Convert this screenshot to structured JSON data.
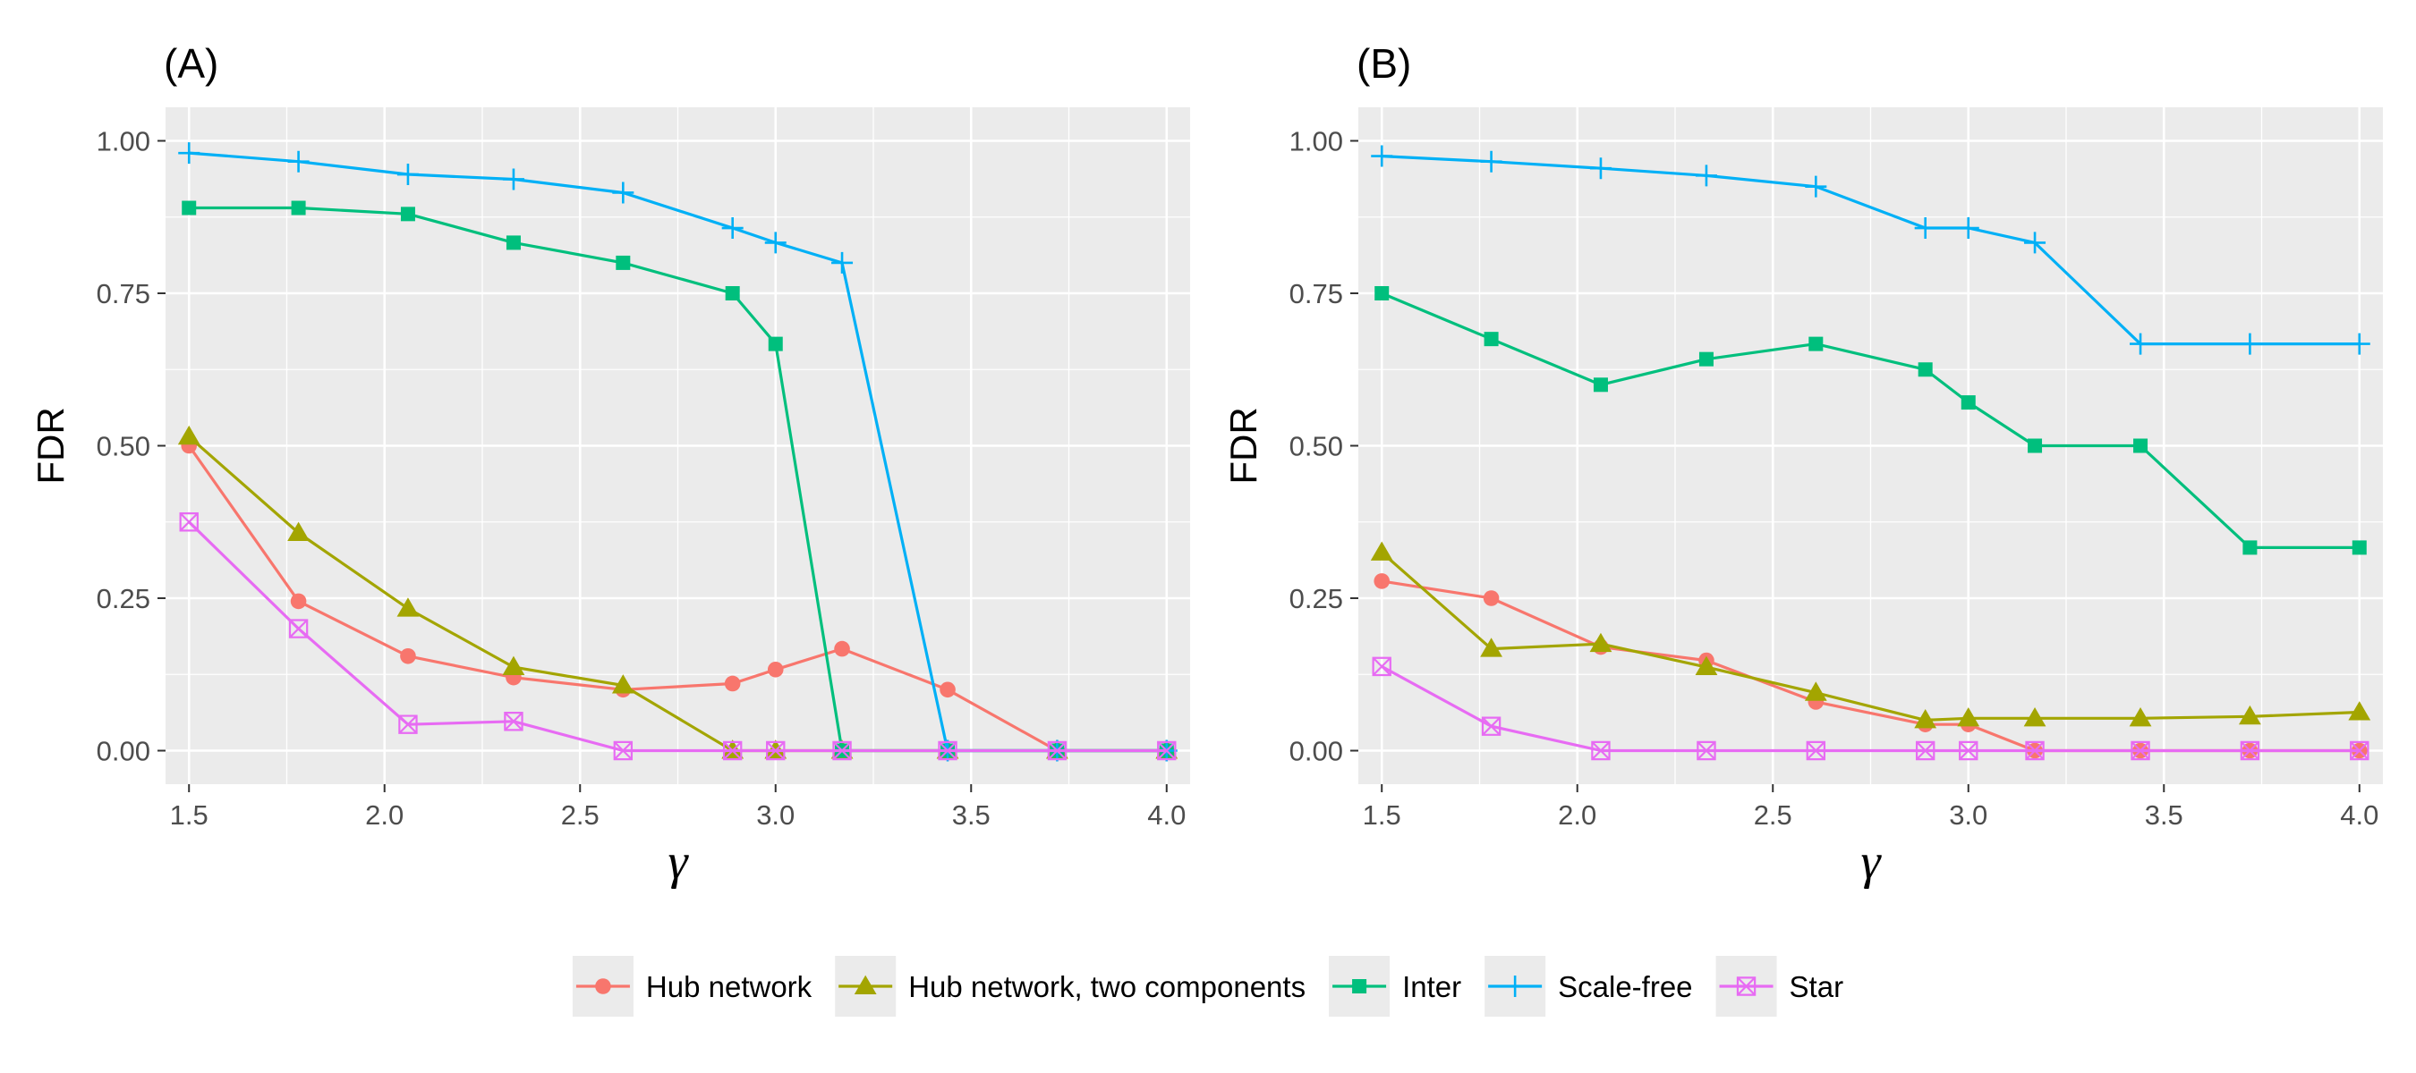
{
  "chart_data": [
    {
      "type": "line",
      "title": "(A)",
      "xlabel": "γ",
      "ylabel": "FDR",
      "xlim": [
        1.44,
        4.06
      ],
      "ylim": [
        -0.055,
        1.055
      ],
      "xticks": [
        "1.5",
        "2.0",
        "2.5",
        "3.0",
        "3.5",
        "4.0"
      ],
      "yticks": [
        "0.00",
        "0.25",
        "0.50",
        "0.75",
        "1.00"
      ],
      "grid": true,
      "series": [
        {
          "name": "Hub network",
          "color": "#F8766D",
          "marker": "circle",
          "x": [
            1.5,
            1.78,
            2.06,
            2.33,
            2.61,
            2.89,
            3.0,
            3.17,
            3.44,
            3.72,
            4.0
          ],
          "y": [
            0.5,
            0.245,
            0.155,
            0.12,
            0.1,
            0.11,
            0.133,
            0.167,
            0.1,
            0.0,
            0.0
          ]
        },
        {
          "name": "Hub network, two components",
          "color": "#A3A500",
          "marker": "triangle",
          "x": [
            1.5,
            1.78,
            2.06,
            2.33,
            2.61,
            2.89,
            3.0,
            3.17,
            3.44,
            3.72,
            4.0
          ],
          "y": [
            0.515,
            0.357,
            0.233,
            0.137,
            0.107,
            0.0,
            0.0,
            0.0,
            0.0,
            0.0,
            0.0
          ]
        },
        {
          "name": "Inter",
          "color": "#00BF7D",
          "marker": "square",
          "x": [
            1.5,
            1.78,
            2.06,
            2.33,
            2.61,
            2.89,
            3.0,
            3.17,
            3.44,
            3.72,
            4.0
          ],
          "y": [
            0.89,
            0.89,
            0.88,
            0.833,
            0.8,
            0.75,
            0.667,
            0.0,
            0.0,
            0.0,
            0.0
          ]
        },
        {
          "name": "Scale-free",
          "color": "#00B0F6",
          "marker": "plus",
          "x": [
            1.5,
            1.78,
            2.06,
            2.33,
            2.61,
            2.89,
            3.0,
            3.17,
            3.44,
            3.72,
            4.0
          ],
          "y": [
            0.98,
            0.966,
            0.945,
            0.937,
            0.915,
            0.857,
            0.833,
            0.8,
            0.0,
            0.0,
            0.0
          ]
        },
        {
          "name": "Star",
          "color": "#E76BF3",
          "marker": "boxx",
          "x": [
            1.5,
            1.78,
            2.06,
            2.33,
            2.61,
            2.89,
            3.0,
            3.17,
            3.44,
            3.72,
            4.0
          ],
          "y": [
            0.375,
            0.2,
            0.043,
            0.048,
            0.0,
            0.0,
            0.0,
            0.0,
            0.0,
            0.0,
            0.0
          ]
        }
      ]
    },
    {
      "type": "line",
      "title": "(B)",
      "xlabel": "γ",
      "ylabel": "FDR",
      "xlim": [
        1.44,
        4.06
      ],
      "ylim": [
        -0.055,
        1.055
      ],
      "xticks": [
        "1.5",
        "2.0",
        "2.5",
        "3.0",
        "3.5",
        "4.0"
      ],
      "yticks": [
        "0.00",
        "0.25",
        "0.50",
        "0.75",
        "1.00"
      ],
      "grid": true,
      "series": [
        {
          "name": "Hub network",
          "color": "#F8766D",
          "marker": "circle",
          "x": [
            1.5,
            1.78,
            2.06,
            2.33,
            2.61,
            2.89,
            3.0,
            3.17,
            3.44,
            3.72,
            4.0
          ],
          "y": [
            0.278,
            0.25,
            0.17,
            0.148,
            0.08,
            0.043,
            0.043,
            0.0,
            0.0,
            0.0,
            0.0
          ]
        },
        {
          "name": "Hub network, two components",
          "color": "#A3A500",
          "marker": "triangle",
          "x": [
            1.5,
            1.78,
            2.06,
            2.33,
            2.61,
            2.89,
            3.0,
            3.17,
            3.44,
            3.72,
            4.0
          ],
          "y": [
            0.325,
            0.167,
            0.175,
            0.137,
            0.095,
            0.05,
            0.053,
            0.053,
            0.053,
            0.056,
            0.063
          ]
        },
        {
          "name": "Inter",
          "color": "#00BF7D",
          "marker": "square",
          "x": [
            1.5,
            1.78,
            2.06,
            2.33,
            2.61,
            2.89,
            3.0,
            3.17,
            3.44,
            3.72,
            4.0
          ],
          "y": [
            0.75,
            0.675,
            0.6,
            0.642,
            0.667,
            0.625,
            0.571,
            0.5,
            0.5,
            0.333,
            0.333
          ]
        },
        {
          "name": "Scale-free",
          "color": "#00B0F6",
          "marker": "plus",
          "x": [
            1.5,
            1.78,
            2.06,
            2.33,
            2.61,
            2.89,
            3.0,
            3.17,
            3.44,
            3.72,
            4.0
          ],
          "y": [
            0.975,
            0.966,
            0.955,
            0.943,
            0.925,
            0.857,
            0.857,
            0.833,
            0.667,
            0.667,
            0.667
          ]
        },
        {
          "name": "Star",
          "color": "#E76BF3",
          "marker": "boxx",
          "x": [
            1.5,
            1.78,
            2.06,
            2.33,
            2.61,
            2.89,
            3.0,
            3.17,
            3.44,
            3.72,
            4.0
          ],
          "y": [
            0.138,
            0.04,
            0.0,
            0.0,
            0.0,
            0.0,
            0.0,
            0.0,
            0.0,
            0.0,
            0.0
          ]
        }
      ]
    }
  ],
  "legend": {
    "placement": "bottom",
    "items": [
      {
        "label": "Hub network",
        "color": "#F8766D",
        "marker": "circle"
      },
      {
        "label": "Hub network, two components",
        "color": "#A3A500",
        "marker": "triangle"
      },
      {
        "label": "Inter",
        "color": "#00BF7D",
        "marker": "square"
      },
      {
        "label": "Scale-free",
        "color": "#00B0F6",
        "marker": "plus"
      },
      {
        "label": "Star",
        "color": "#E76BF3",
        "marker": "boxx"
      }
    ]
  }
}
